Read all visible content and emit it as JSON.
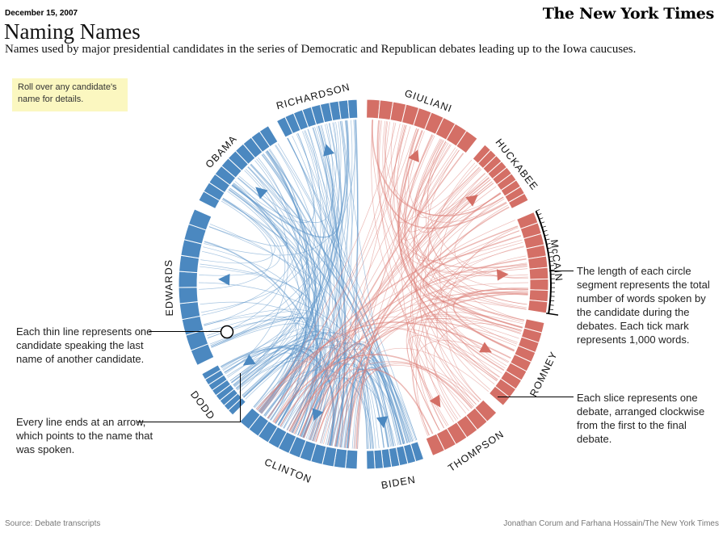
{
  "header": {
    "date": "December 15, 2007",
    "masthead": "The New York Times",
    "title": "Naming Names",
    "subtitle": "Names used by major presidential candidates in the series of Democratic and Republican debates leading up to the Iowa caucuses."
  },
  "rollover_hint": "Roll over any candidate's name for details.",
  "notes": {
    "thin_line": "Each thin line represents one candidate speaking the last name of another candidate.",
    "arrow": "Every line ends at an arrow, which points to the name that was spoken.",
    "segment_length": "The length of each circle segment represents the total number of words spoken by the candidate during the debates. Each tick mark represents 1,000 words.",
    "slice": "Each slice represents one debate, arranged clockwise from the first to the final debate."
  },
  "candidates": [
    {
      "name": "GIULIANI",
      "party": "republican",
      "slices": 9
    },
    {
      "name": "HUCKABEE",
      "party": "republican",
      "slices": 9
    },
    {
      "name": "McCAIN",
      "party": "republican",
      "slices": 9
    },
    {
      "name": "ROMNEY",
      "party": "republican",
      "slices": 9
    },
    {
      "name": "THOMPSON",
      "party": "republican",
      "slices": 6
    },
    {
      "name": "BIDEN",
      "party": "democratic",
      "slices": 7
    },
    {
      "name": "CLINTON",
      "party": "democratic",
      "slices": 11
    },
    {
      "name": "DODD",
      "party": "democratic",
      "slices": 8
    },
    {
      "name": "EDWARDS",
      "party": "democratic",
      "slices": 10
    },
    {
      "name": "OBAMA",
      "party": "democratic",
      "slices": 10
    },
    {
      "name": "RICHARDSON",
      "party": "democratic",
      "slices": 9
    }
  ],
  "colors": {
    "democratic": "#4b88c0",
    "republican": "#d46f66",
    "democratic_line": "#5b93c8",
    "republican_line": "#dc8079"
  },
  "footer": {
    "source": "Source: Debate transcripts",
    "credit": "Jonathan Corum and Farhana Hossain/The New York Times"
  }
}
